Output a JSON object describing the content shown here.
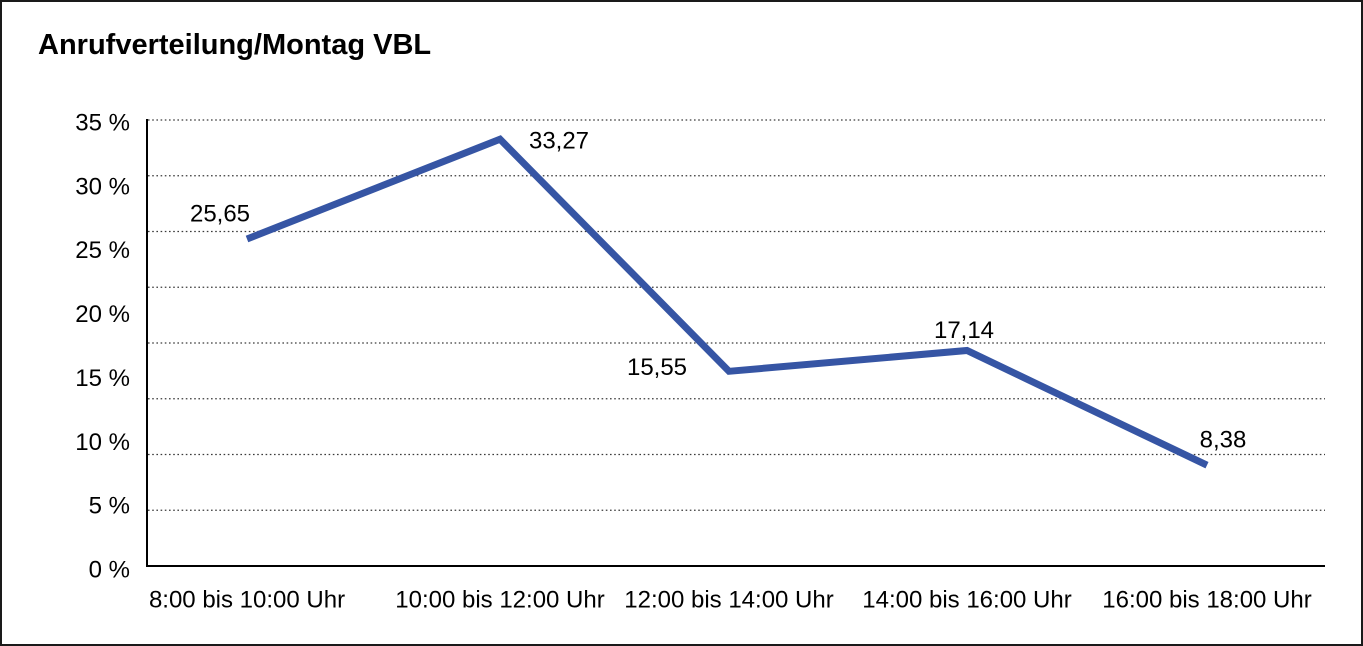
{
  "page": {
    "kind": "line-chart-report-page"
  },
  "chart_data": {
    "type": "line",
    "title": "Anrufverteilung/Montag VBL",
    "categories": [
      "8:00 bis 10:00 Uhr",
      "10:00 bis 12:00 Uhr",
      "12:00 bis 14:00 Uhr",
      "14:00 bis 16:00 Uhr",
      "16:00 bis 18:00 Uhr"
    ],
    "values": [
      25.65,
      33.27,
      15.55,
      17.14,
      8.38
    ],
    "value_labels": [
      "25,65",
      "33,27",
      "15,55",
      "17,14",
      "8,38"
    ],
    "y_ticks": [
      "35 %",
      "30 %",
      "25 %",
      "20 %",
      "15 %",
      "10 %",
      "5 %",
      "0 %"
    ],
    "xlabel": "",
    "ylabel": "",
    "ylim": [
      0,
      35
    ],
    "y_unit": "%",
    "grid": "horizontal-dotted",
    "legend": "none",
    "line_color": "#3655A4",
    "axis_color": "#000000",
    "background_color": "#ffffff"
  }
}
